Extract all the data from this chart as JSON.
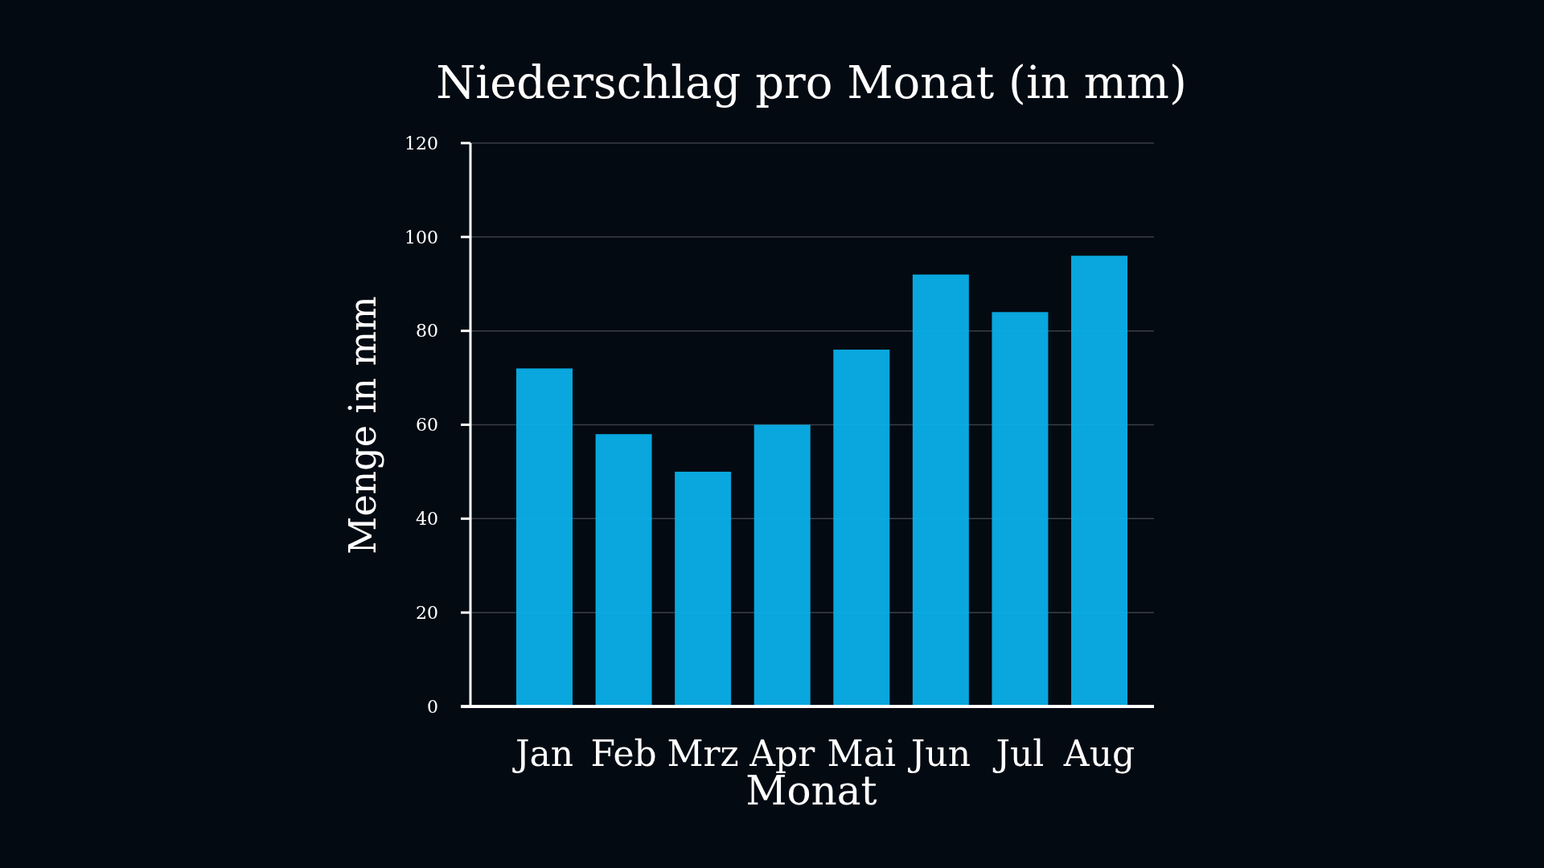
{
  "chart_data": {
    "type": "bar",
    "title": "Niederschlag pro Monat (in mm)",
    "xlabel": "Monat",
    "ylabel": "Menge in mm",
    "categories": [
      "Jan",
      "Feb",
      "Mrz",
      "Apr",
      "Mai",
      "Jun",
      "Jul",
      "Aug"
    ],
    "values": [
      72,
      58,
      50,
      60,
      76,
      92,
      84,
      96
    ],
    "color": "#0ab0ea",
    "ylim": [
      0,
      120
    ],
    "yticks": [
      0,
      20,
      40,
      60,
      80,
      100,
      120
    ],
    "grid": "y"
  }
}
